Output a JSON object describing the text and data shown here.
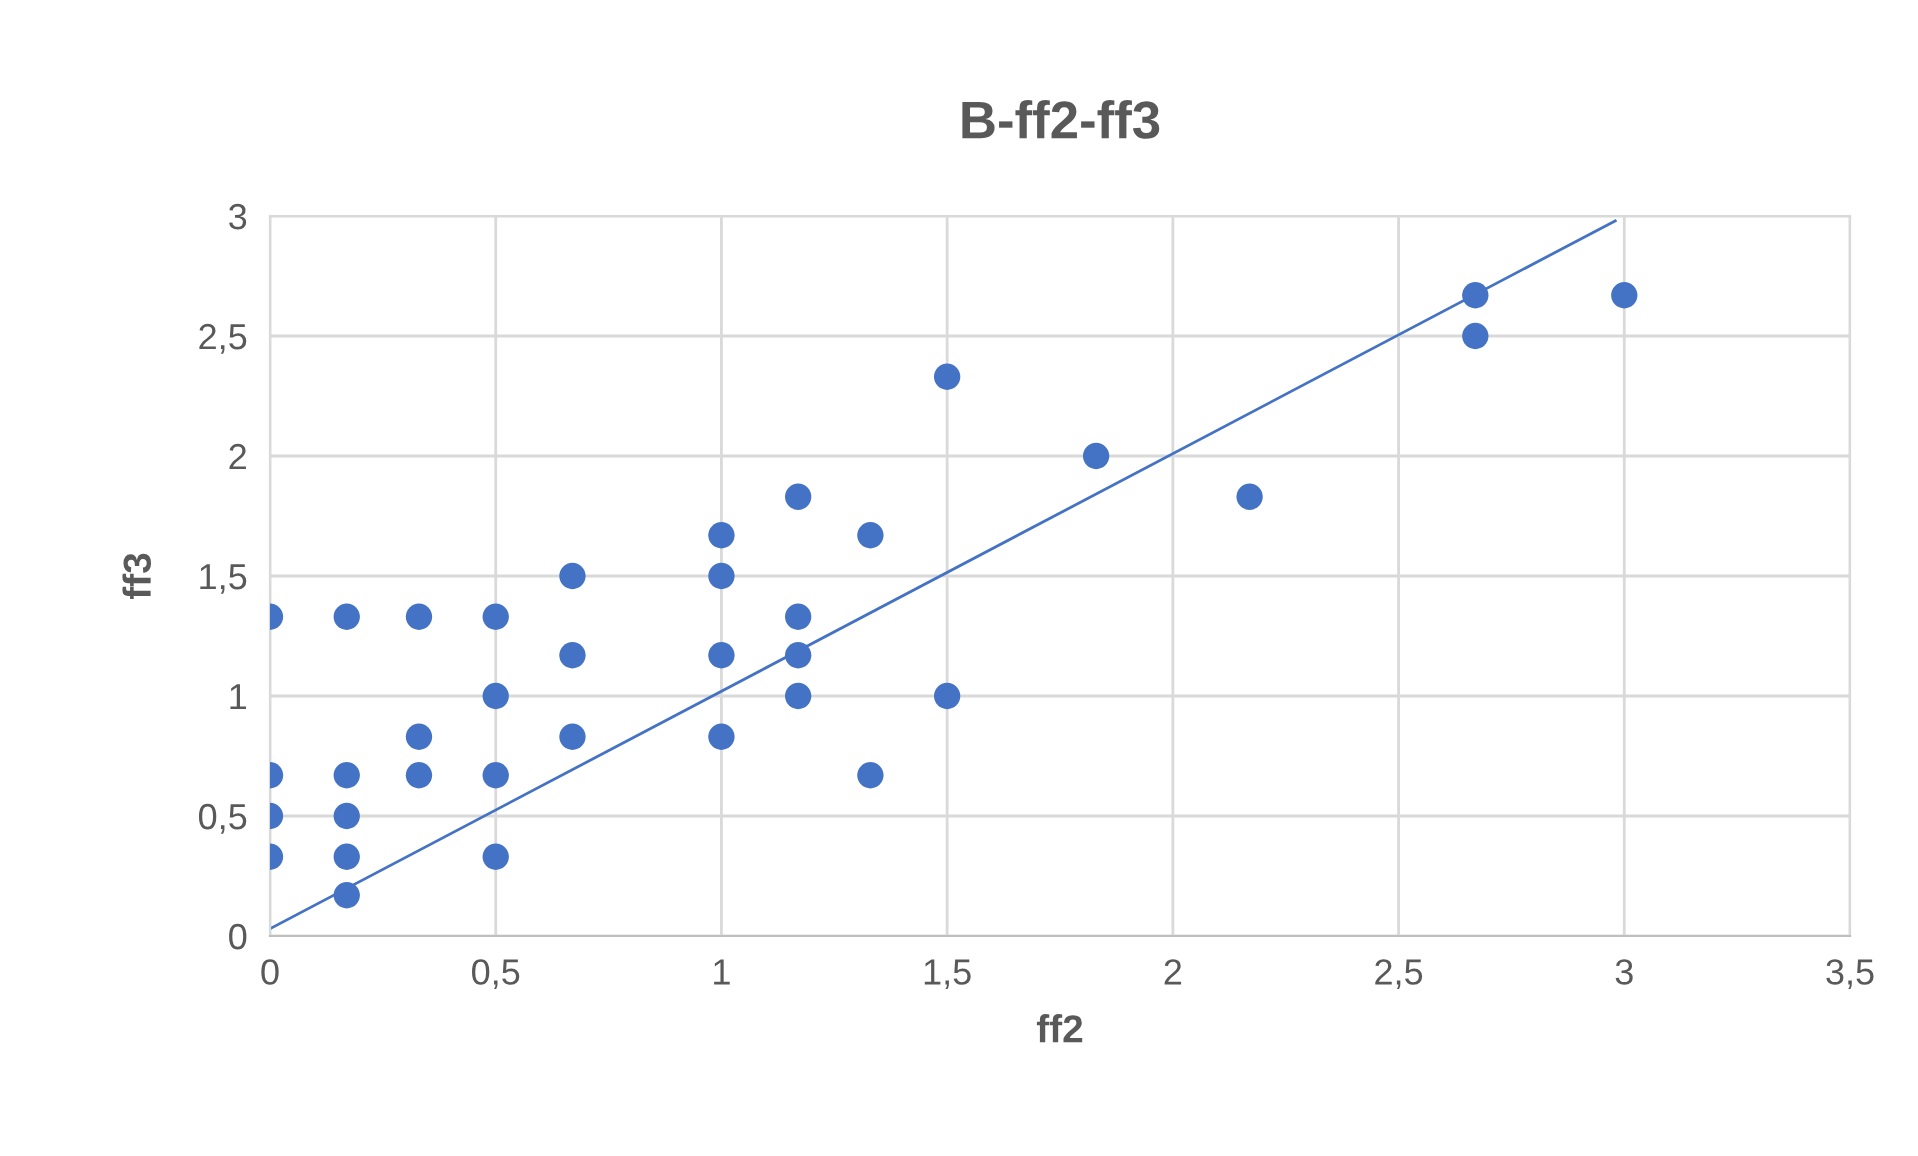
{
  "chart_data": {
    "type": "scatter",
    "title": "B-ff2-ff3",
    "xlabel": "ff2",
    "ylabel": "ff3",
    "grid": true,
    "xlim": [
      0,
      3.5
    ],
    "ylim": [
      0,
      3
    ],
    "xticks": [
      0,
      {
        "value": 0.5,
        "label": "0,5"
      },
      1,
      {
        "value": 1.5,
        "label": "1,5"
      },
      2,
      {
        "value": 2.5,
        "label": "2,5"
      },
      3,
      {
        "value": 3.5,
        "label": "3,5"
      }
    ],
    "yticks": [
      0,
      {
        "value": 0.5,
        "label": "0,5"
      },
      1,
      {
        "value": 1.5,
        "label": "1,5"
      },
      2,
      {
        "value": 2.5,
        "label": "2,5"
      },
      3
    ],
    "series": [
      {
        "color": "#4472c4",
        "marker": "circle",
        "x": [
          0,
          0,
          0,
          0,
          0.17,
          0.17,
          0.17,
          0.17,
          0.17,
          0.33,
          0.33,
          0.33,
          0.5,
          0.5,
          0.5,
          0.5,
          0.67,
          0.67,
          0.67,
          1,
          1,
          1,
          1,
          1.17,
          1.17,
          1.17,
          1.17,
          1.33,
          1.33,
          1.5,
          1.5,
          1.83,
          2.17,
          2.67,
          2.67,
          3
        ],
        "values": [
          1.33,
          0.67,
          0.5,
          0.33,
          1.33,
          0.67,
          0.5,
          0.33,
          0.17,
          1.33,
          0.83,
          0.67,
          1.33,
          1.0,
          0.67,
          0.33,
          1.5,
          1.17,
          0.83,
          1.67,
          1.5,
          1.17,
          0.83,
          1.83,
          1.33,
          1.17,
          1.0,
          1.67,
          0.67,
          2.33,
          1.0,
          2.0,
          1.83,
          2.67,
          2.5,
          2.67
        ]
      },
      {
        "type": "line",
        "color": "#4472c4",
        "x": [
          0,
          2.98
        ],
        "values": [
          0.03,
          2.98
        ]
      }
    ]
  }
}
